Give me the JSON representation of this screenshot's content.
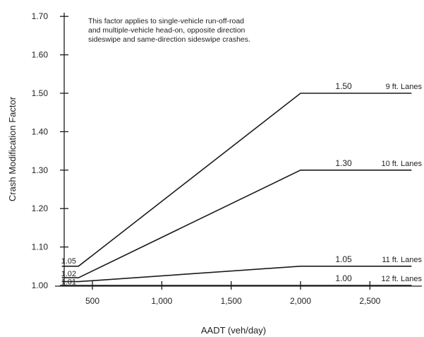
{
  "chart_data": {
    "type": "line",
    "xlabel": "AADT (veh/day)",
    "ylabel": "Crash Modification Factor",
    "annotation": [
      "This factor applies to single-vehicle run-off-road",
      "and multiple-vehicle head-on, opposite direction",
      "sideswipe and same-direction sideswipe crashes."
    ],
    "xlim": [
      280,
      2800
    ],
    "ylim": [
      1.0,
      1.7
    ],
    "x_ticks": [
      500,
      1000,
      1500,
      2000,
      2500
    ],
    "x_tick_labels": [
      "500",
      "1,000",
      "1,500",
      "2,000",
      "2,500"
    ],
    "y_ticks": [
      1.0,
      1.1,
      1.2,
      1.3,
      1.4,
      1.5,
      1.6,
      1.7
    ],
    "y_tick_labels": [
      "1.00",
      "1.10",
      "1.20",
      "1.30",
      "1.40",
      "1.50",
      "1.60",
      "1.70"
    ],
    "series": [
      {
        "name": "9 ft. Lanes",
        "x": [
          280,
          400,
          2000,
          2800
        ],
        "y": [
          1.05,
          1.05,
          1.5,
          1.5
        ],
        "start_label": "1.05",
        "end_label": "1.50"
      },
      {
        "name": "10 ft. Lanes",
        "x": [
          280,
          400,
          2000,
          2800
        ],
        "y": [
          1.02,
          1.02,
          1.3,
          1.3
        ],
        "start_label": "1.02",
        "end_label": "1.30"
      },
      {
        "name": "11 ft. Lanes",
        "x": [
          280,
          400,
          2000,
          2800
        ],
        "y": [
          1.01,
          1.01,
          1.05,
          1.05
        ],
        "start_label": "1.01",
        "end_label": "1.05"
      },
      {
        "name": "12 ft. Lanes",
        "x": [
          280,
          2800
        ],
        "y": [
          1.0,
          1.0
        ],
        "start_label": "",
        "end_label": "1.00"
      }
    ]
  }
}
